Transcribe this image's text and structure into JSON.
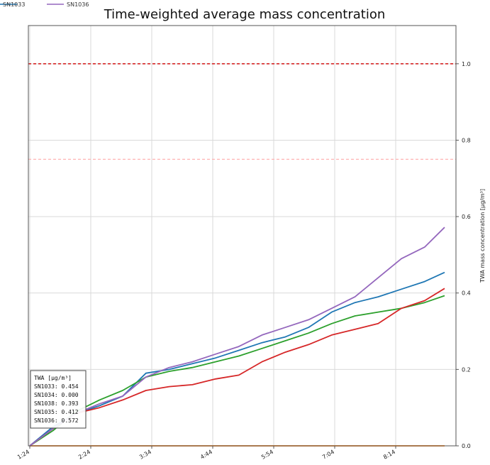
{
  "chart_data": {
    "type": "line",
    "title": "Time-weighted average mass concentration",
    "ylabel": "TWA mass concentration [µg/m³]",
    "xlabel": "",
    "ylim": [
      0,
      1.1
    ],
    "yticks": [
      "0.0",
      "0.2",
      "0.4",
      "0.6",
      "0.8",
      "1.0"
    ],
    "xticks": [
      "1:24",
      "2:24",
      "3:34",
      "4:44",
      "5:54",
      "7:04",
      "8:14"
    ],
    "grid": true,
    "y_axis_side": "right",
    "legend": {
      "placement": "top-left",
      "entries": [
        {
          "label": "SN1033",
          "color": "#1f77b4"
        },
        {
          "label": "SN1036",
          "color": "#9467bd"
        }
      ]
    },
    "reference_lines": [
      {
        "y": 1.0,
        "color": "#d62728",
        "style": "dashed"
      },
      {
        "y": 0.75,
        "color": "#ffb3b3",
        "style": "dashed"
      }
    ],
    "x": [
      0,
      0.5,
      1,
      1.5,
      2,
      2.5,
      3,
      3.5,
      4,
      4.5,
      5,
      5.5,
      6,
      6.5,
      7,
      7.5,
      8,
      8.5,
      8.93
    ],
    "series": [
      {
        "name": "SN1033",
        "color": "#1f77b4",
        "values": [
          0.0,
          0.05,
          0.085,
          0.105,
          0.13,
          0.19,
          0.2,
          0.215,
          0.23,
          0.25,
          0.27,
          0.285,
          0.31,
          0.35,
          0.375,
          0.39,
          0.41,
          0.43,
          0.454
        ]
      },
      {
        "name": "SN1034",
        "color": "#ff7f0e",
        "values": [
          0.0,
          0.0,
          0.0,
          0.0,
          0.0,
          0.0,
          0.0,
          0.0,
          0.0,
          0.0,
          0.0,
          0.0,
          0.0,
          0.0,
          0.0,
          0.0,
          0.0,
          0.0,
          0.0
        ]
      },
      {
        "name": "SN1038",
        "color": "#2ca02c",
        "values": [
          0.0,
          0.04,
          0.09,
          0.12,
          0.145,
          0.18,
          0.195,
          0.205,
          0.22,
          0.235,
          0.255,
          0.275,
          0.295,
          0.32,
          0.34,
          0.35,
          0.36,
          0.375,
          0.393
        ]
      },
      {
        "name": "SN1035",
        "color": "#d62728",
        "values": [
          0.0,
          0.045,
          0.085,
          0.1,
          0.12,
          0.145,
          0.155,
          0.16,
          0.175,
          0.185,
          0.22,
          0.245,
          0.265,
          0.29,
          0.305,
          0.32,
          0.36,
          0.38,
          0.412
        ]
      },
      {
        "name": "SN1036",
        "color": "#9467bd",
        "values": [
          0.0,
          0.045,
          0.085,
          0.11,
          0.13,
          0.18,
          0.205,
          0.22,
          0.24,
          0.26,
          0.29,
          0.31,
          0.33,
          0.36,
          0.39,
          0.44,
          0.49,
          0.52,
          0.572
        ]
      }
    ],
    "annotation_box": {
      "header": "TWA [µg/m³]",
      "lines": [
        "SN1033:  0.454",
        "SN1034:  0.000",
        "SN1038:  0.393",
        "SN1035:  0.412",
        "SN1036:  0.572"
      ]
    }
  }
}
